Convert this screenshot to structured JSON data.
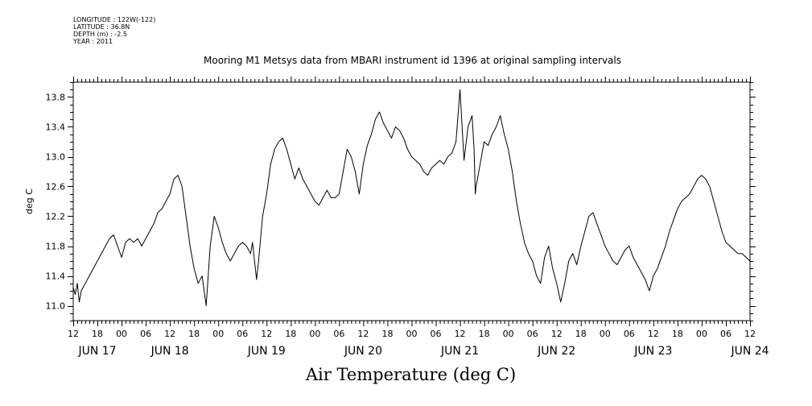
{
  "meta": {
    "longitude": "LONGITUDE : 122W(-122)",
    "latitude": "LATITUDE : 36.8N",
    "depth": "DEPTH (m) : -2.5",
    "year": "YEAR : 2011"
  },
  "chart_data": {
    "type": "line",
    "title": "Mooring M1 Metsys data from MBARI instrument id 1396 at original sampling intervals",
    "xlabel": "",
    "ylabel": "deg C",
    "bottom_title": "Air Temperature (deg C)",
    "xlim": [
      0,
      168
    ],
    "ylim": [
      10.8,
      14.0
    ],
    "yticks": [
      11.0,
      11.4,
      11.8,
      12.2,
      12.6,
      13.0,
      13.4,
      13.8
    ],
    "ytick_labels": [
      "11.0",
      "11.4",
      "11.8",
      "12.2",
      "12.6",
      "13.0",
      "13.4",
      "13.8"
    ],
    "xticks": [
      0,
      6,
      12,
      18,
      24,
      30,
      36,
      42,
      48,
      54,
      60,
      66,
      72,
      78,
      84,
      90,
      96,
      102,
      108,
      114,
      120,
      126,
      132,
      138,
      144,
      150,
      156,
      162,
      168
    ],
    "xtick_labels": [
      "12",
      "18",
      "00",
      "06",
      "12",
      "18",
      "00",
      "06",
      "12",
      "18",
      "00",
      "06",
      "12",
      "18",
      "00",
      "06",
      "12",
      "18",
      "00",
      "06",
      "12",
      "18",
      "00",
      "06",
      "12",
      "18",
      "00",
      "06",
      "12"
    ],
    "date_labels": [
      {
        "x": 6,
        "label": "JUN 17"
      },
      {
        "x": 24,
        "label": "JUN 18"
      },
      {
        "x": 48,
        "label": "JUN 19"
      },
      {
        "x": 72,
        "label": "JUN 20"
      },
      {
        "x": 96,
        "label": "JUN 21"
      },
      {
        "x": 120,
        "label": "JUN 22"
      },
      {
        "x": 144,
        "label": "JUN 23"
      },
      {
        "x": 168,
        "label": "JUN 24"
      }
    ],
    "series": [
      {
        "x": [
          0,
          0.5,
          1,
          1.5,
          2,
          3,
          4,
          5,
          6,
          7,
          8,
          9,
          10,
          11,
          12,
          13,
          14,
          15,
          16,
          17,
          18,
          19,
          20,
          21,
          22,
          23,
          24,
          25,
          26,
          27,
          28,
          29,
          30,
          31,
          32,
          33,
          34,
          35,
          36,
          36.5,
          37,
          38,
          39,
          40,
          41,
          42,
          43,
          44,
          44.5,
          45,
          45.5,
          46,
          47,
          48,
          49,
          50,
          51,
          52,
          53,
          54,
          55,
          56,
          57,
          58,
          59,
          60,
          61,
          62,
          63,
          64,
          65,
          66,
          67,
          68,
          69,
          70,
          71,
          72,
          73,
          74,
          75,
          76,
          77,
          78,
          79,
          80,
          81,
          82,
          83,
          84,
          85,
          86,
          87,
          88,
          89,
          90,
          91,
          92,
          93,
          94,
          95,
          96,
          97,
          98,
          99,
          99.5,
          99.8,
          100,
          101,
          102,
          103,
          104,
          105,
          106,
          107,
          108,
          109,
          110,
          111,
          112,
          113,
          114,
          115,
          116,
          117,
          118,
          119,
          120,
          121,
          122,
          123,
          124,
          125,
          126,
          127,
          128,
          129,
          130,
          131,
          132,
          133,
          134,
          135,
          136,
          137,
          138,
          139,
          140,
          141,
          142,
          143,
          144,
          145,
          146,
          147,
          148,
          149,
          150,
          151,
          152,
          153,
          154,
          155,
          156,
          157,
          158,
          159,
          160,
          161,
          162,
          163,
          164,
          165,
          166,
          167,
          168
        ],
        "y": [
          11.25,
          11.15,
          11.3,
          11.05,
          11.2,
          11.3,
          11.4,
          11.5,
          11.6,
          11.7,
          11.8,
          11.9,
          11.95,
          11.8,
          11.65,
          11.85,
          11.9,
          11.85,
          11.9,
          11.8,
          11.9,
          12.0,
          12.1,
          12.25,
          12.3,
          12.4,
          12.5,
          12.7,
          12.75,
          12.6,
          12.2,
          11.8,
          11.5,
          11.3,
          11.4,
          11.0,
          11.8,
          12.2,
          12.05,
          11.95,
          11.85,
          11.7,
          11.6,
          11.7,
          11.8,
          11.85,
          11.8,
          11.7,
          11.85,
          11.6,
          11.35,
          11.6,
          12.2,
          12.5,
          12.9,
          13.1,
          13.2,
          13.25,
          13.1,
          12.9,
          12.7,
          12.85,
          12.7,
          12.6,
          12.5,
          12.4,
          12.35,
          12.45,
          12.55,
          12.45,
          12.45,
          12.5,
          12.8,
          13.1,
          13.0,
          12.8,
          12.5,
          12.9,
          13.15,
          13.3,
          13.5,
          13.6,
          13.45,
          13.35,
          13.25,
          13.4,
          13.35,
          13.25,
          13.1,
          13.0,
          12.95,
          12.9,
          12.8,
          12.75,
          12.85,
          12.9,
          12.95,
          12.9,
          13.0,
          13.05,
          13.2,
          13.9,
          12.95,
          13.4,
          13.55,
          13.1,
          12.5,
          12.6,
          12.9,
          13.2,
          13.15,
          13.3,
          13.4,
          13.55,
          13.3,
          13.1,
          12.8,
          12.4,
          12.1,
          11.85,
          11.7,
          11.6,
          11.4,
          11.3,
          11.65,
          11.8,
          11.5,
          11.3,
          11.05,
          11.3,
          11.6,
          11.7,
          11.55,
          11.8,
          12.0,
          12.2,
          12.25,
          12.1,
          11.95,
          11.8,
          11.7,
          11.6,
          11.55,
          11.65,
          11.75,
          11.8,
          11.65,
          11.55,
          11.45,
          11.35,
          11.2,
          11.4,
          11.5,
          11.65,
          11.8,
          12.0,
          12.15,
          12.3,
          12.4,
          12.45,
          12.5,
          12.6,
          12.7,
          12.75,
          12.7,
          12.6,
          12.4,
          12.2,
          12.0,
          11.85,
          11.8,
          11.75,
          11.7,
          11.7,
          11.65,
          11.6
        ]
      }
    ],
    "grid": false,
    "line_color": "#000000"
  }
}
